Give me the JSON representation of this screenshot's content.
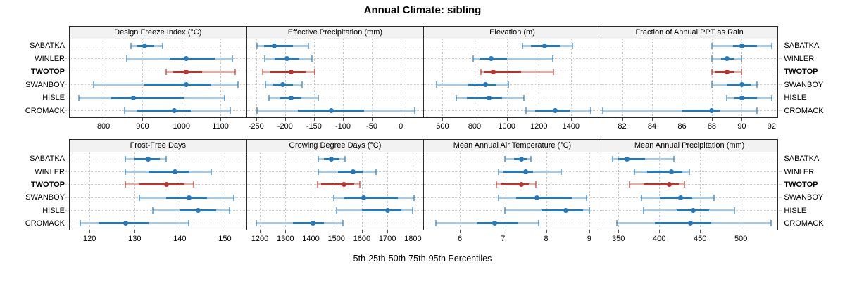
{
  "title": "Annual Climate: sibling",
  "caption": "5th-25th-50th-75th-95th Percentiles",
  "colors": {
    "series_blue": "#2878b4",
    "series_blue_light": "#a8cbe3",
    "highlight_red": "#b5372f",
    "highlight_red_light": "#e2aca7",
    "grid": "#c9c9c9",
    "panel_border": "#2a2a2a",
    "strip_bg": "#f2f2f2",
    "axis_tick": "#555555"
  },
  "chart_data": {
    "type": "dot-interval (lattice-style percentile dotplot)",
    "percentiles": [
      5,
      25,
      50,
      75,
      95
    ],
    "sites": [
      "SABATKA",
      "WINLER",
      "TWOTOP",
      "SWANBOY",
      "HISLE",
      "CROMACK"
    ],
    "highlight_site": "TWOTOP",
    "legend_position": "none",
    "grid": "dotted",
    "panels": [
      {
        "title": "Design Freeze Index (°C)",
        "row": 0,
        "col": 0,
        "xlim": [
          713,
          1166
        ],
        "ticks": [
          800,
          900,
          1000,
          1100
        ],
        "values": {
          "SABATKA": [
            870,
            885,
            905,
            930,
            952
          ],
          "WINLER": [
            860,
            970,
            1012,
            1085,
            1130
          ],
          "TWOTOP": [
            960,
            978,
            1013,
            1053,
            1138
          ],
          "SWANBOY": [
            775,
            905,
            1012,
            1075,
            1145
          ],
          "HISLE": [
            737,
            820,
            876,
            1005,
            1110
          ],
          "CROMACK": [
            854,
            887,
            982,
            1024,
            1126
          ]
        }
      },
      {
        "title": "Effective Precipitation (mm)",
        "row": 0,
        "col": 1,
        "xlim": [
          -266,
          39
        ],
        "ticks": [
          -250,
          -200,
          -150,
          -100,
          -50,
          0
        ],
        "values": {
          "SABATKA": [
            -248,
            -236,
            -219,
            -186,
            -160
          ],
          "WINLER": [
            -235,
            -218,
            -197,
            -175,
            -154
          ],
          "TWOTOP": [
            -239,
            -225,
            -190,
            -165,
            -149
          ],
          "SWANBOY": [
            -234,
            -220,
            -204,
            -186,
            -171
          ],
          "HISLE": [
            -228,
            -208,
            -190,
            -172,
            -142
          ],
          "CROMACK": [
            -249,
            -178,
            -120,
            -63,
            24
          ]
        }
      },
      {
        "title": "Elevation (m)",
        "row": 0,
        "col": 2,
        "xlim": [
          485,
          1584
        ],
        "ticks": [
          600,
          800,
          1000,
          1200,
          1400
        ],
        "values": {
          "SABATKA": [
            1100,
            1150,
            1235,
            1330,
            1410
          ],
          "WINLER": [
            790,
            830,
            905,
            1000,
            1285
          ],
          "TWOTOP": [
            840,
            860,
            915,
            1090,
            1290
          ],
          "SWANBOY": [
            565,
            760,
            870,
            930,
            1010
          ],
          "HISLE": [
            685,
            750,
            890,
            970,
            1105
          ],
          "CROMACK": [
            1120,
            1175,
            1300,
            1390,
            1525
          ]
        }
      },
      {
        "title": "Fraction of Annual PPT as Rain",
        "row": 0,
        "col": 3,
        "xlim": [
          80.6,
          92.4
        ],
        "ticks": [
          82,
          84,
          86,
          88,
          90,
          92
        ],
        "values": {
          "SABATKA": [
            88,
            89.4,
            90,
            91,
            92
          ],
          "WINLER": [
            88,
            88.6,
            89,
            89.5,
            90
          ],
          "TWOTOP": [
            88,
            88.2,
            89,
            89.5,
            90
          ],
          "SWANBOY": [
            88,
            89,
            90,
            90.6,
            91
          ],
          "HISLE": [
            89,
            89.5,
            90,
            91,
            92
          ],
          "CROMACK": [
            80.7,
            86,
            88,
            88.5,
            91
          ]
        }
      },
      {
        "title": "Frost-Free Days",
        "row": 1,
        "col": 0,
        "xlim": [
          115.6,
          154.7
        ],
        "ticks": [
          120,
          130,
          140,
          150
        ],
        "values": {
          "SABATKA": [
            128,
            130,
            133,
            135.5,
            137
          ],
          "WINLER": [
            128,
            133,
            139,
            142,
            147
          ],
          "TWOTOP": [
            128,
            131,
            137,
            141,
            143
          ],
          "SWANBOY": [
            131,
            137,
            142,
            146,
            152
          ],
          "HISLE": [
            134,
            140,
            144,
            148,
            151
          ],
          "CROMACK": [
            118,
            122,
            128,
            133,
            142
          ]
        }
      },
      {
        "title": "Growing Degree Days (°C)",
        "row": 1,
        "col": 1,
        "xlim": [
          1149,
          1841
        ],
        "ticks": [
          1200,
          1300,
          1400,
          1500,
          1600,
          1700,
          1800
        ],
        "values": {
          "SABATKA": [
            1430,
            1450,
            1480,
            1512,
            1535
          ],
          "WINLER": [
            1430,
            1505,
            1565,
            1602,
            1655
          ],
          "TWOTOP": [
            1425,
            1440,
            1530,
            1570,
            1592
          ],
          "SWANBOY": [
            1490,
            1530,
            1608,
            1742,
            1805
          ],
          "HISLE": [
            1500,
            1600,
            1700,
            1756,
            1800
          ],
          "CROMACK": [
            1185,
            1330,
            1408,
            1450,
            1525
          ]
        }
      },
      {
        "title": "Mean Annual Air Temperature (°C)",
        "row": 1,
        "col": 2,
        "xlim": [
          5.17,
          9.26
        ],
        "ticks": [
          6,
          7,
          8,
          9
        ],
        "values": {
          "SABATKA": [
            7.05,
            7.25,
            7.42,
            7.55,
            7.65
          ],
          "WINLER": [
            6.9,
            7.0,
            7.52,
            7.7,
            8.35
          ],
          "TWOTOP": [
            6.85,
            6.95,
            7.42,
            7.6,
            7.76
          ],
          "SWANBOY": [
            6.9,
            7.3,
            7.78,
            8.6,
            8.93
          ],
          "HISLE": [
            7.05,
            7.9,
            8.45,
            8.85,
            9.0
          ],
          "CROMACK": [
            5.45,
            6.4,
            6.8,
            7.35,
            7.83
          ]
        }
      },
      {
        "title": "Mean Annual Precipitation (mm)",
        "row": 1,
        "col": 3,
        "xlim": [
          329,
          545
        ],
        "ticks": [
          350,
          400,
          450,
          500
        ],
        "values": {
          "SABATKA": [
            343,
            350,
            361,
            383,
            418
          ],
          "WINLER": [
            370,
            385,
            415,
            428,
            437
          ],
          "TWOTOP": [
            364,
            381,
            412,
            424,
            431
          ],
          "SWANBOY": [
            378,
            401,
            426,
            440,
            467
          ],
          "HISLE": [
            381,
            421,
            442,
            461,
            492
          ],
          "CROMACK": [
            348,
            395,
            438,
            464,
            537
          ]
        }
      }
    ]
  }
}
